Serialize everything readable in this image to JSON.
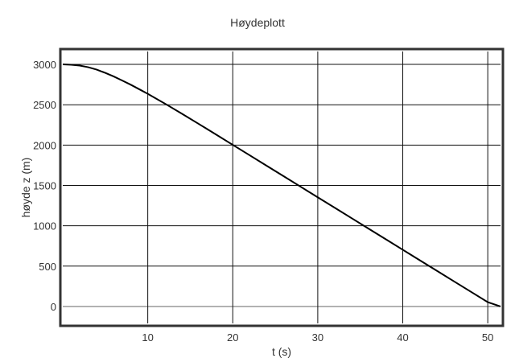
{
  "chart_data": {
    "type": "line",
    "title": "Høydeplott",
    "xlabel": "t (s)",
    "ylabel": "høyde z (m)",
    "xlim": [
      0,
      51.5
    ],
    "ylim": [
      -210,
      3160
    ],
    "xticks": [
      10,
      20,
      30,
      40,
      50
    ],
    "xtick_labels": [
      "10",
      "20",
      "30",
      "40",
      "50"
    ],
    "yticks": [
      0,
      500,
      1000,
      1500,
      2000,
      2500,
      3000
    ],
    "ytick_labels": [
      "0",
      "500",
      "1000",
      "1500",
      "2000",
      "2500",
      "3000"
    ],
    "grid": true,
    "legend": "none",
    "series": [
      {
        "color": "#000000",
        "x": [
          0,
          1,
          2,
          3,
          4,
          5,
          6,
          7,
          8,
          9,
          10,
          12,
          14,
          16,
          18,
          20,
          22,
          24,
          26,
          28,
          30,
          32,
          34,
          36,
          38,
          40,
          42,
          44,
          46,
          48,
          50,
          51.5
        ],
        "y": [
          3000,
          2996,
          2985,
          2965,
          2935,
          2895,
          2850,
          2800,
          2748,
          2692,
          2635,
          2515,
          2390,
          2262,
          2133,
          2003,
          1873,
          1743,
          1613,
          1483,
          1353,
          1223,
          1093,
          963,
          833,
          703,
          573,
          443,
          313,
          183,
          53,
          0
        ]
      }
    ]
  }
}
